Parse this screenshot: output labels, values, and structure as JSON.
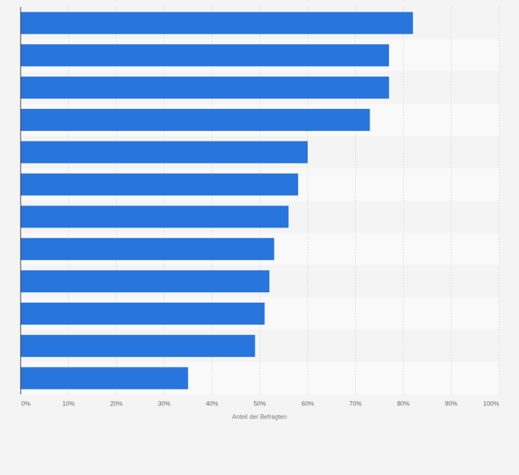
{
  "chart_data": {
    "type": "bar",
    "orientation": "horizontal",
    "categories": [
      null,
      null,
      null,
      null,
      null,
      null,
      null,
      null,
      null,
      null,
      null,
      null
    ],
    "values": [
      82,
      77,
      77,
      73,
      60,
      58,
      56,
      53,
      52,
      51,
      49,
      35
    ],
    "color": "#2876dd",
    "x_label": "Anteil der Befragten",
    "xlim": [
      0,
      100
    ],
    "xticks": [
      {
        "value": 0,
        "label": "0%"
      },
      {
        "value": 10,
        "label": "10%"
      },
      {
        "value": 20,
        "label": "20%"
      },
      {
        "value": 30,
        "label": "30%"
      },
      {
        "value": 40,
        "label": "40%"
      },
      {
        "value": 50,
        "label": "50%"
      },
      {
        "value": 60,
        "label": "60%"
      },
      {
        "value": 70,
        "label": "70%"
      },
      {
        "value": 80,
        "label": "80%"
      },
      {
        "value": 90,
        "label": "90%"
      },
      {
        "value": 100,
        "label": "100%"
      }
    ],
    "grid": true
  }
}
